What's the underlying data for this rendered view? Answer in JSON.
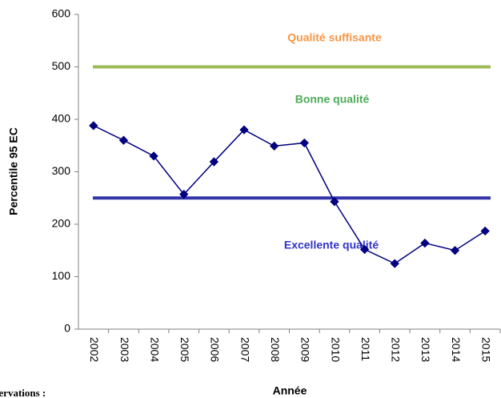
{
  "chart_data": {
    "type": "line",
    "x_label": "Année",
    "y_label": "Percentile 95 EC",
    "categories": [
      "2002",
      "2003",
      "2004",
      "2005",
      "2006",
      "2007",
      "2008",
      "2009",
      "2010",
      "2011",
      "2012",
      "2013",
      "2014",
      "2015"
    ],
    "series": [
      {
        "name": "Percentile 95 EC",
        "color": "#000080",
        "values": [
          388,
          360,
          330,
          257,
          319,
          380,
          349,
          355,
          243,
          152,
          125,
          164,
          150,
          187
        ]
      }
    ],
    "reference_lines": [
      {
        "value": 500,
        "color": "#9bbb59"
      },
      {
        "value": 250,
        "color": "#3333aa"
      }
    ],
    "annotations": [
      {
        "text": "Qualité suffisante",
        "color": "#f79646"
      },
      {
        "text": "Bonne qualité",
        "color": "#4eac5b"
      },
      {
        "text": "Excellente qualité",
        "color": "#3333cc"
      }
    ],
    "footnote": "Observations :",
    "ylim": [
      0,
      600
    ],
    "yticks": [
      0,
      100,
      200,
      300,
      400,
      500,
      600
    ],
    "grid": false
  }
}
